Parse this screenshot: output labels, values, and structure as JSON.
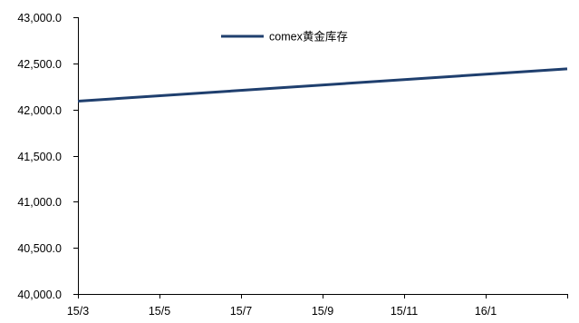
{
  "chart_data": {
    "type": "line",
    "x": [
      "15/3",
      "15/5",
      "15/7",
      "15/9",
      "15/11",
      "16/1"
    ],
    "xlim": [
      "15/3",
      "16/3"
    ],
    "ylim": [
      40000,
      43000
    ],
    "yticks": [
      40000,
      40500,
      41000,
      41500,
      42000,
      42500,
      43000
    ],
    "ytick_labels": [
      "40,000.0",
      "40,500.0",
      "41,000.0",
      "41,500.0",
      "42,000.0",
      "42,500.0",
      "43,000.0"
    ],
    "series": [
      {
        "name": "comex黄金库存",
        "color": "#1F3F6E",
        "points": [
          {
            "x": "15/3",
            "y": 42090
          },
          {
            "x": "16/3",
            "y": 42440
          }
        ]
      }
    ],
    "legend": "top-center",
    "grid": false
  }
}
